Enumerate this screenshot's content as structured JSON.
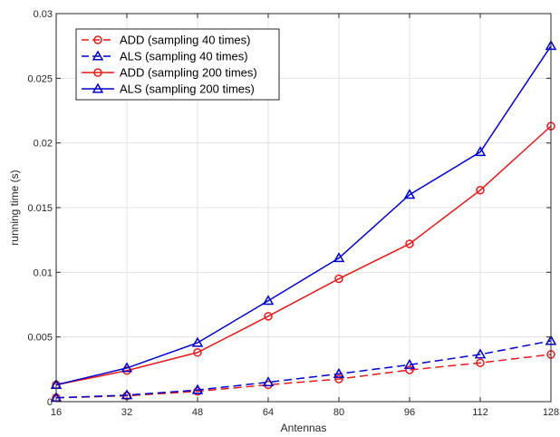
{
  "chart_data": {
    "type": "line",
    "xlabel": "Antennas",
    "ylabel": "running time (s)",
    "x": [
      16,
      32,
      48,
      64,
      80,
      96,
      112,
      128
    ],
    "xlim": [
      16,
      128
    ],
    "ylim": [
      0,
      0.03
    ],
    "xticks": [
      "16",
      "32",
      "48",
      "64",
      "80",
      "96",
      "112",
      "128"
    ],
    "yticks": [
      0,
      0.005,
      0.01,
      0.015,
      0.02,
      0.025,
      0.03
    ],
    "ytick_labels": [
      "0",
      "0.005",
      "0.01",
      "0.015",
      "0.02",
      "0.025",
      "0.03"
    ],
    "grid": true,
    "legend_position": "top-left",
    "series": [
      {
        "name": "ADD (sampling 40 times)",
        "color": "#e31a1c",
        "dash": "dashed",
        "marker": "circle",
        "values": [
          0.0003,
          0.00045,
          0.0008,
          0.0013,
          0.00175,
          0.00245,
          0.003,
          0.00365
        ]
      },
      {
        "name": "ALS (sampling 40 times)",
        "color": "#0000cc",
        "dash": "dashed",
        "marker": "triangle",
        "values": [
          0.0003,
          0.0005,
          0.0009,
          0.0015,
          0.00215,
          0.00285,
          0.00365,
          0.0047
        ]
      },
      {
        "name": "ADD (sampling 200 times)",
        "color": "#e31a1c",
        "dash": "solid",
        "marker": "circle",
        "values": [
          0.0013,
          0.0024,
          0.0038,
          0.0066,
          0.0095,
          0.0122,
          0.01635,
          0.0213
        ]
      },
      {
        "name": "ALS (sampling 200 times)",
        "color": "#0000cc",
        "dash": "solid",
        "marker": "triangle",
        "values": [
          0.0013,
          0.0026,
          0.00455,
          0.0078,
          0.0111,
          0.016,
          0.0193,
          0.0275
        ]
      }
    ]
  }
}
